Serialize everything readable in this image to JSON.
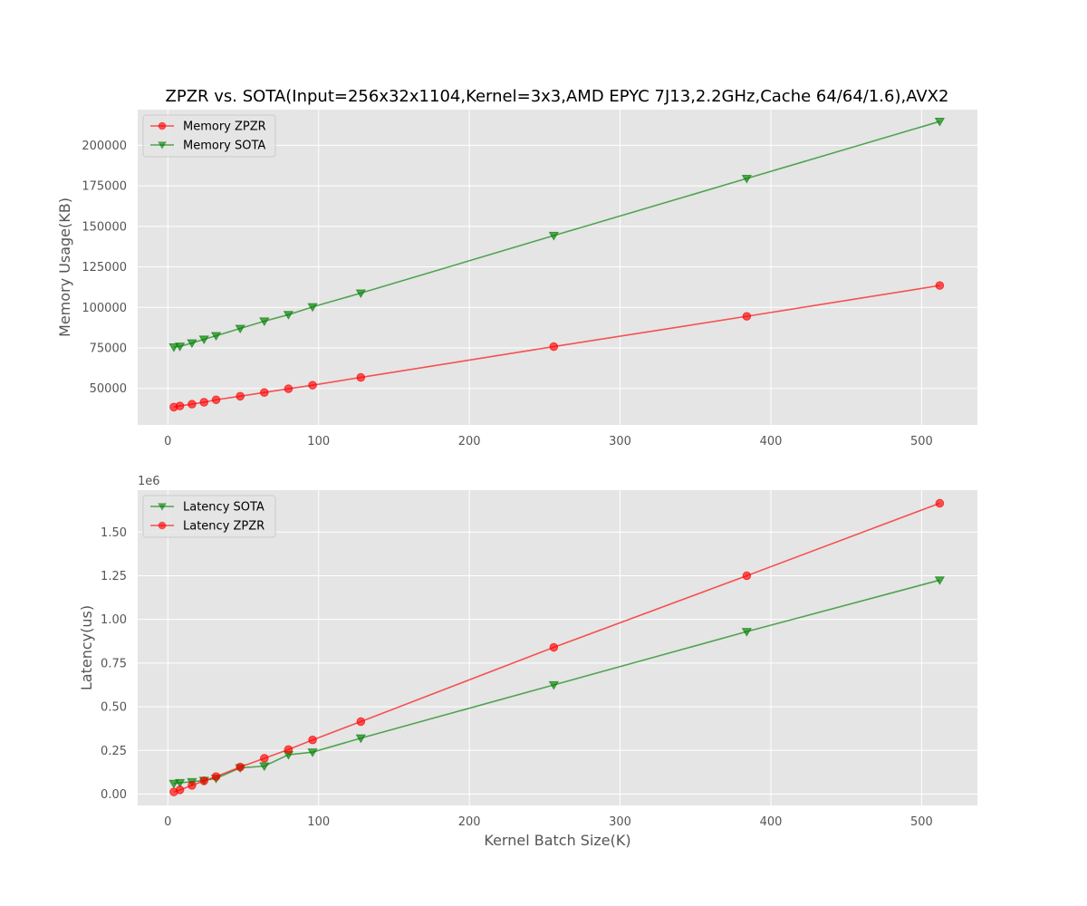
{
  "chart_data": [
    {
      "type": "line",
      "title": "ZPZR vs. SOTA(Input=256x32x1104,Kernel=3x3,AMD EPYC 7J13,2.2GHz,Cache 64/64/1.6),AVX2",
      "xlabel": "",
      "ylabel": "Memory Usage(KB)",
      "xlim": [
        -20,
        537
      ],
      "ylim": [
        27500,
        222000
      ],
      "x_ticks": [
        0,
        100,
        200,
        300,
        400,
        500
      ],
      "y_ticks": [
        50000,
        75000,
        100000,
        125000,
        150000,
        175000,
        200000
      ],
      "x_tick_labels": [
        "0",
        "100",
        "200",
        "300",
        "400",
        "500"
      ],
      "y_tick_labels": [
        "50000",
        "75000",
        "100000",
        "125000",
        "150000",
        "175000",
        "200000"
      ],
      "grid": true,
      "legend_position": "top-left",
      "x": [
        4,
        8,
        16,
        24,
        32,
        48,
        64,
        80,
        96,
        128,
        256,
        384,
        512
      ],
      "series": [
        {
          "name": "Memory ZPZR",
          "color": "#ff0000",
          "marker": "circle",
          "values": [
            38500,
            39200,
            40300,
            41500,
            43000,
            45200,
            47500,
            49800,
            52000,
            56800,
            75800,
            94500,
            113500
          ]
        },
        {
          "name": "Memory SOTA",
          "color": "#008000",
          "marker": "triangle-down",
          "values": [
            75500,
            76000,
            78000,
            80300,
            82500,
            87000,
            91500,
            95500,
            100300,
            108800,
            144300,
            179500,
            214700
          ]
        }
      ]
    },
    {
      "type": "line",
      "title": "",
      "xlabel": "Kernel Batch Size(K)",
      "ylabel": "Latency(us)",
      "y_offset_label": "1e6",
      "xlim": [
        -20,
        537
      ],
      "ylim": [
        -0.065,
        1.74
      ],
      "x_ticks": [
        0,
        100,
        200,
        300,
        400,
        500
      ],
      "y_ticks": [
        0.0,
        0.25,
        0.5,
        0.75,
        1.0,
        1.25,
        1.5
      ],
      "x_tick_labels": [
        "0",
        "100",
        "200",
        "300",
        "400",
        "500"
      ],
      "y_tick_labels": [
        "0.00",
        "0.25",
        "0.50",
        "0.75",
        "1.00",
        "1.25",
        "1.50"
      ],
      "grid": true,
      "legend_position": "top-left",
      "x": [
        4,
        8,
        16,
        24,
        32,
        48,
        64,
        80,
        96,
        128,
        256,
        384,
        512
      ],
      "series": [
        {
          "name": "Latency SOTA",
          "color": "#008000",
          "marker": "triangle-down",
          "values": [
            0.06,
            0.065,
            0.07,
            0.078,
            0.09,
            0.15,
            0.16,
            0.225,
            0.24,
            0.32,
            0.625,
            0.93,
            1.225
          ]
        },
        {
          "name": "Latency ZPZR",
          "color": "#ff0000",
          "marker": "circle",
          "values": [
            0.012,
            0.024,
            0.05,
            0.076,
            0.1,
            0.155,
            0.205,
            0.255,
            0.31,
            0.415,
            0.84,
            1.25,
            1.665
          ]
        }
      ]
    }
  ]
}
